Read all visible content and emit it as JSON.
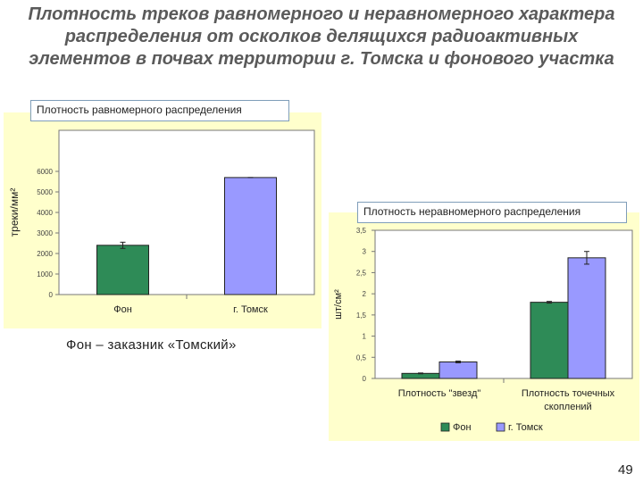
{
  "slide": {
    "title_lines": [
      "Плотность треков равномерного и неравномерного характера",
      "распределения от осколков делящихся радиоактивных",
      "элементов в почвах территории г. Томска и фонового участка"
    ],
    "note": "Фон – заказник «Томский»",
    "page_number": "49"
  },
  "colors": {
    "fon": "#2e8b57",
    "tomsk": "#9999ff",
    "plot_bg": "#ffffff",
    "chart_bg": "#ffffcc"
  },
  "chart_data": [
    {
      "type": "bar",
      "label_box": "Плотность равномерного распределения",
      "ylabel": "треки/мм²",
      "categories": [
        "Фон",
        "г. Томск"
      ],
      "values": [
        2400,
        5700
      ],
      "errors": [
        150,
        0
      ],
      "ylim": [
        0,
        8000
      ],
      "yticks": [
        "0",
        "1000",
        "2000",
        "3000",
        "4000",
        "5000",
        "6000"
      ],
      "grid": false
    },
    {
      "type": "bar",
      "label_box": "Плотность неравномерного распределения",
      "ylabel": "шт/см²",
      "categories": [
        [
          "Плотность \"звезд\""
        ],
        [
          "Плотность точечных",
          "скоплений"
        ]
      ],
      "series": [
        {
          "name": "Фон",
          "values": [
            0.12,
            1.8
          ],
          "errors": [
            0.01,
            0.02
          ]
        },
        {
          "name": "г. Томск",
          "values": [
            0.39,
            2.85
          ],
          "errors": [
            0.02,
            0.15
          ]
        }
      ],
      "ylim": [
        0,
        3.5
      ],
      "yticks": [
        "0",
        "0,5",
        "1",
        "1,5",
        "2",
        "2,5",
        "3",
        "3,5"
      ],
      "legend": "bottom",
      "grid": false
    }
  ]
}
